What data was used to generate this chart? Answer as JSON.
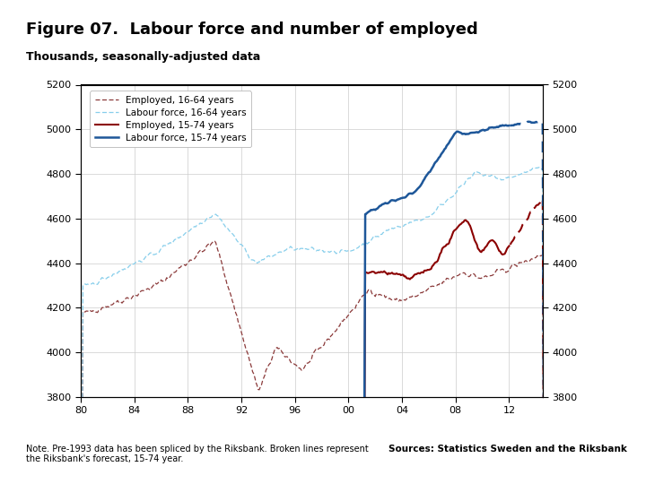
{
  "title": "Figure 07.  Labour force and number of employed",
  "subtitle": "Thousands, seasonally-adjusted data",
  "note": "Note. Pre-1993 data has been spliced by the Riksbank. Broken lines represent\nthe Riksbank's forecast, 15-74 year.",
  "source": "Sources: Statistics Sweden and the Riksbank",
  "ylim": [
    3800,
    5200
  ],
  "yticks": [
    3800,
    4000,
    4200,
    4400,
    4600,
    4800,
    5000,
    5200
  ],
  "xlim": [
    1980,
    2014.5
  ],
  "xticks": [
    1980,
    1984,
    1988,
    1992,
    1996,
    2000,
    2004,
    2008,
    2012
  ],
  "xticklabels": [
    "80",
    "84",
    "88",
    "92",
    "96",
    "00",
    "04",
    "08",
    "12"
  ],
  "color_employed_1664": "#8B3A3A",
  "color_labour_1664": "#87CEEB",
  "color_employed_1574": "#8B0000",
  "color_labour_1574": "#1E5799",
  "legend_labels": [
    "Employed, 16-64 years",
    "Labour force, 16-64 years",
    "Employed, 15-74 years",
    "Labour force, 15-74 years"
  ],
  "background_color": "#ffffff",
  "riksbank_color": "#1a3a6b",
  "footer_bar_color": "#1a3a6b",
  "forecast_start_1574": 2012.0,
  "forecast_start_1664": 2014.5
}
